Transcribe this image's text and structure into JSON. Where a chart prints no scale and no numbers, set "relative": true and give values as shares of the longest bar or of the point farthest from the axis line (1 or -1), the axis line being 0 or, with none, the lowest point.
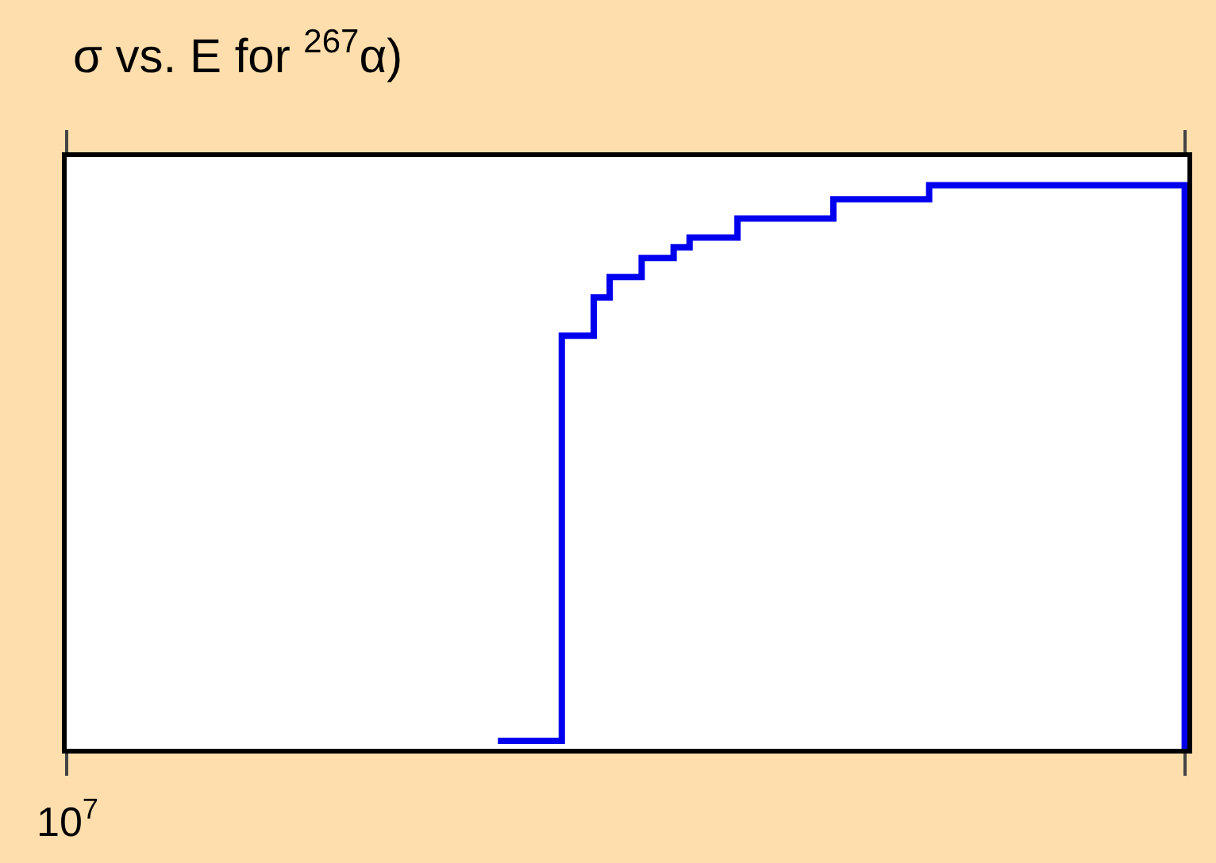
{
  "chart_data": {
    "type": "step",
    "title": "σ vs. E for $^{267}$α)",
    "relative": true,
    "annotations": [
      "10$^{7}$"
    ],
    "categories": [
      null,
      null,
      null,
      null,
      null,
      null,
      null,
      null,
      null,
      null,
      null,
      null,
      null,
      null,
      null,
      null,
      null,
      null,
      null,
      null,
      null,
      null,
      null,
      null,
      null,
      null,
      null,
      null,
      null,
      null,
      null,
      null,
      null,
      null,
      null,
      null,
      null,
      null,
      null,
      null,
      null,
      null,
      null,
      null,
      null,
      null,
      null,
      null,
      null,
      null,
      null,
      null,
      null,
      null,
      null,
      null,
      null,
      null,
      null,
      null,
      null,
      null,
      null,
      null,
      null,
      null,
      null,
      null,
      null,
      null,
      null
    ],
    "series": [
      {
        "color": "#0000ee",
        "values": [
          null,
          null,
          null,
          null,
          null,
          null,
          null,
          null,
          null,
          null,
          null,
          null,
          null,
          null,
          null,
          null,
          null,
          null,
          null,
          null,
          null,
          null,
          null,
          null,
          null,
          null,
          null,
          0.014,
          0.014,
          0.014,
          0.014,
          0.733,
          0.733,
          0.801,
          0.837,
          0.837,
          0.871,
          0.871,
          0.89,
          0.907,
          0.907,
          0.907,
          0.941,
          0.941,
          0.941,
          0.941,
          0.941,
          0.941,
          0.975,
          0.975,
          0.975,
          0.975,
          0.975,
          0.975,
          1,
          1,
          1,
          1,
          1,
          1,
          1,
          1,
          1,
          1,
          1,
          1,
          1,
          1,
          1,
          1,
          0
        ]
      }
    ],
    "marker": "none",
    "line_style": "solid"
  }
}
